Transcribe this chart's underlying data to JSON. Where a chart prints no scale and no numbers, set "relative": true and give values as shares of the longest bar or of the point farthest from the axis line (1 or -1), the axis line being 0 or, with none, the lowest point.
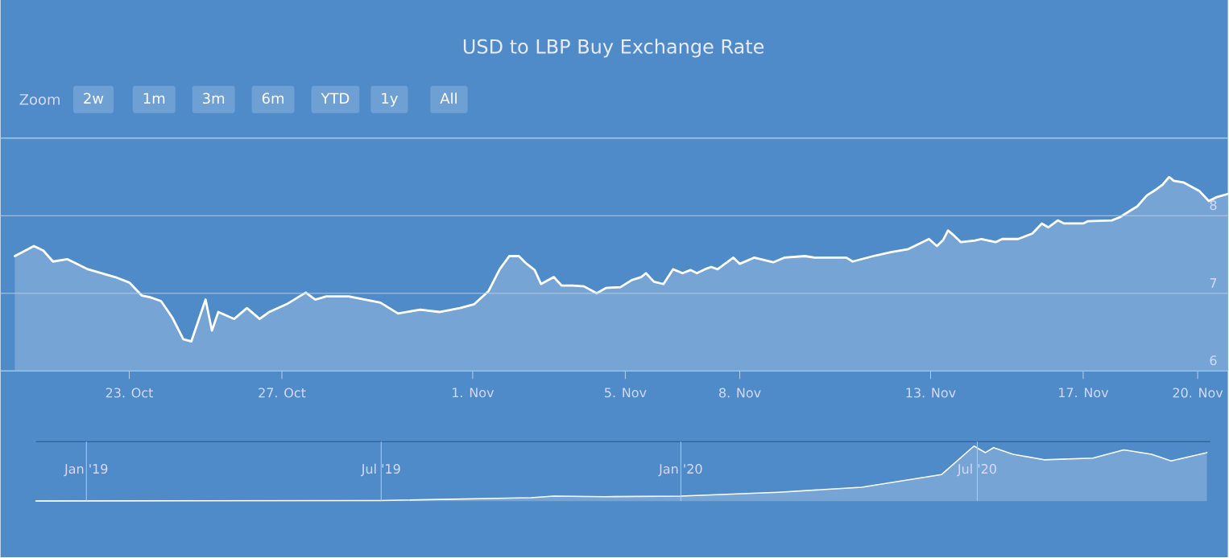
{
  "chart_data": [
    {
      "type": "area",
      "title": "USD to LBP Buy Exchange Rate",
      "color": "#ffffff",
      "grid": "y",
      "annotations": [
        "Zoom",
        "2w",
        "1m",
        "3m",
        "6m",
        "YTD",
        "1y",
        "All"
      ],
      "xlim": [
        "2020-10-19T15:00",
        "2020-11-20T19:00"
      ],
      "xticks": [
        {
          "value": "2020-10-23",
          "label": "23. Oct"
        },
        {
          "value": "2020-10-27",
          "label": "27. Oct"
        },
        {
          "value": "2020-11-01",
          "label": "1. Nov"
        },
        {
          "value": "2020-11-05",
          "label": "5. Nov"
        },
        {
          "value": "2020-11-08",
          "label": "8. Nov"
        },
        {
          "value": "2020-11-13",
          "label": "13. Nov"
        },
        {
          "value": "2020-11-17",
          "label": "17. Nov"
        },
        {
          "value": "2020-11-20",
          "label": "20. Nov"
        }
      ],
      "ylim": [
        6,
        9
      ],
      "yticks": [
        6,
        7,
        8,
        {
          "value": 9,
          "label": null
        }
      ],
      "x": [
        "2020-10-20T00:00",
        "2020-10-20T12:00",
        "2020-10-20T18:00",
        "2020-10-21T00:00",
        "2020-10-21T09:00",
        "2020-10-21T22:00",
        "2020-10-22T15:00",
        "2020-10-23T00:00",
        "2020-10-23T08:00",
        "2020-10-23T13:00",
        "2020-10-23T20:00",
        "2020-10-24T03:00",
        "2020-10-24T10:00",
        "2020-10-24T15:00",
        "2020-10-25T00:00",
        "2020-10-25T04:00",
        "2020-10-25T08:00",
        "2020-10-25T18:00",
        "2020-10-26T02:00",
        "2020-10-26T10:00",
        "2020-10-26T16:00",
        "2020-10-27T03:00",
        "2020-10-27T15:00",
        "2020-10-27T21:00",
        "2020-10-28T04:00",
        "2020-10-28T18:00",
        "2020-10-29T14:00",
        "2020-10-30T01:00",
        "2020-10-30T15:00",
        "2020-10-31T03:00",
        "2020-10-31T16:00",
        "2020-11-01T01:00",
        "2020-11-01T10:00",
        "2020-11-01T17:00",
        "2020-11-01T23:00",
        "2020-11-02T05:00",
        "2020-11-02T10:00",
        "2020-11-02T15:00",
        "2020-11-02T19:00",
        "2020-11-03T03:00",
        "2020-11-03T08:00",
        "2020-11-03T15:00",
        "2020-11-03T22:00",
        "2020-11-04T06:00",
        "2020-11-04T12:00",
        "2020-11-04T21:00",
        "2020-11-05T04:00",
        "2020-11-05T10:00",
        "2020-11-05T13:00",
        "2020-11-05T18:00",
        "2020-11-06T00:00",
        "2020-11-06T06:00",
        "2020-11-06T12:00",
        "2020-11-06T17:00",
        "2020-11-06T21:00",
        "2020-11-07T02:00",
        "2020-11-07T06:00",
        "2020-11-07T10:00",
        "2020-11-07T20:00",
        "2020-11-08T00:00",
        "2020-11-08T09:00",
        "2020-11-08T21:00",
        "2020-11-09T04:00",
        "2020-11-09T17:00",
        "2020-11-09T23:00",
        "2020-11-10T19:00",
        "2020-11-10T23:00",
        "2020-11-11T12:00",
        "2020-11-11T23:00",
        "2020-11-12T10:00",
        "2020-11-12T23:00",
        "2020-11-13T04:00",
        "2020-11-13T08:00",
        "2020-11-13T11:00",
        "2020-11-13T15:00",
        "2020-11-13T19:00",
        "2020-11-14T04:00",
        "2020-11-14T08:00",
        "2020-11-14T17:00",
        "2020-11-14T21:00",
        "2020-11-15T07:00",
        "2020-11-15T16:00",
        "2020-11-15T22:00",
        "2020-11-16T02:00",
        "2020-11-16T08:00",
        "2020-11-16T12:00",
        "2020-11-17T00:00",
        "2020-11-17T03:00",
        "2020-11-17T18:00",
        "2020-11-17T23:00",
        "2020-11-18T06:00",
        "2020-11-18T10:00",
        "2020-11-18T16:00",
        "2020-11-18T22:00",
        "2020-11-19T02:00",
        "2020-11-19T06:00",
        "2020-11-19T09:00",
        "2020-11-19T15:00",
        "2020-11-20T01:00",
        "2020-11-20T07:00",
        "2020-11-20T12:00",
        "2020-11-20T19:00"
      ],
      "values": [
        7.48,
        7.61,
        7.55,
        7.41,
        7.44,
        7.31,
        7.21,
        7.14,
        6.97,
        6.95,
        6.9,
        6.69,
        6.41,
        6.38,
        6.92,
        6.52,
        6.76,
        6.67,
        6.81,
        6.67,
        6.76,
        6.86,
        7.01,
        6.92,
        6.96,
        6.96,
        6.88,
        6.74,
        6.79,
        6.76,
        6.81,
        6.86,
        7.03,
        7.31,
        7.48,
        7.48,
        7.38,
        7.3,
        7.12,
        7.21,
        7.1,
        7.1,
        7.09,
        7.0,
        7.07,
        7.08,
        7.17,
        7.21,
        7.26,
        7.15,
        7.12,
        7.31,
        7.26,
        7.3,
        7.26,
        7.31,
        7.34,
        7.31,
        7.46,
        7.38,
        7.46,
        7.4,
        7.46,
        7.48,
        7.46,
        7.46,
        7.41,
        7.48,
        7.53,
        7.57,
        7.7,
        7.61,
        7.69,
        7.81,
        7.74,
        7.66,
        7.68,
        7.7,
        7.66,
        7.7,
        7.7,
        7.77,
        7.9,
        7.85,
        7.94,
        7.9,
        7.9,
        7.93,
        7.94,
        7.98,
        8.07,
        8.12,
        8.26,
        8.34,
        8.4,
        8.5,
        8.45,
        8.43,
        8.32,
        8.19,
        8.24,
        8.28
      ]
    },
    {
      "type": "area",
      "relative": true,
      "color": "#ffffff",
      "grid": "x",
      "tick_labels": "x",
      "xlim": [
        "2018-12-01",
        "2020-11-21"
      ],
      "xticks": [
        {
          "value": "2019-01-01",
          "label": "Jan '19"
        },
        {
          "value": "2019-07-01",
          "label": "Jul '19"
        },
        {
          "value": "2020-01-01",
          "label": "Jan '20"
        },
        {
          "value": "2020-07-01",
          "label": "Jul '20"
        }
      ],
      "x": [
        "2018-12-01",
        "2019-07-01",
        "2019-10-01",
        "2019-10-15",
        "2019-11-15",
        "2020-01-01",
        "2020-03-01",
        "2020-04-21",
        "2020-06-09",
        "2020-06-29",
        "2020-07-06",
        "2020-07-11",
        "2020-07-23",
        "2020-08-11",
        "2020-09-10",
        "2020-09-29",
        "2020-10-16",
        "2020-10-28",
        "2020-11-19"
      ],
      "values": [
        0,
        0.01,
        0.06,
        0.09,
        0.08,
        0.09,
        0.16,
        0.25,
        0.48,
        1,
        0.88,
        0.97,
        0.85,
        0.75,
        0.78,
        0.93,
        0.85,
        0.73,
        0.88
      ]
    }
  ]
}
